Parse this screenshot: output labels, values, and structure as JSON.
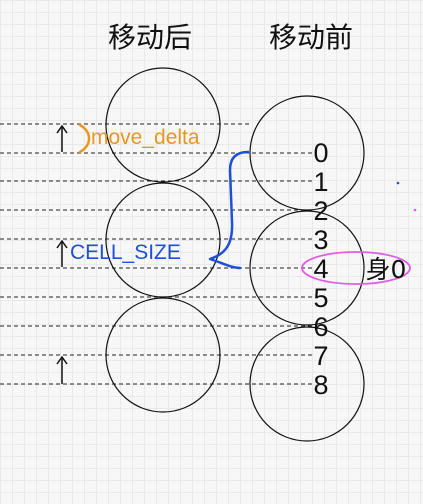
{
  "titles": {
    "after": "移动后",
    "before": "移动前"
  },
  "labels": {
    "move_delta": "move_delta",
    "cell_size": "CELL_SIZE",
    "body": "身0"
  },
  "indices": [
    "0",
    "1",
    "2",
    "3",
    "4",
    "5",
    "6",
    "7",
    "8"
  ],
  "colors": {
    "move_delta": "#e8961e",
    "cell_size": "#1f4fd6",
    "highlight": "#e05ce0"
  }
}
